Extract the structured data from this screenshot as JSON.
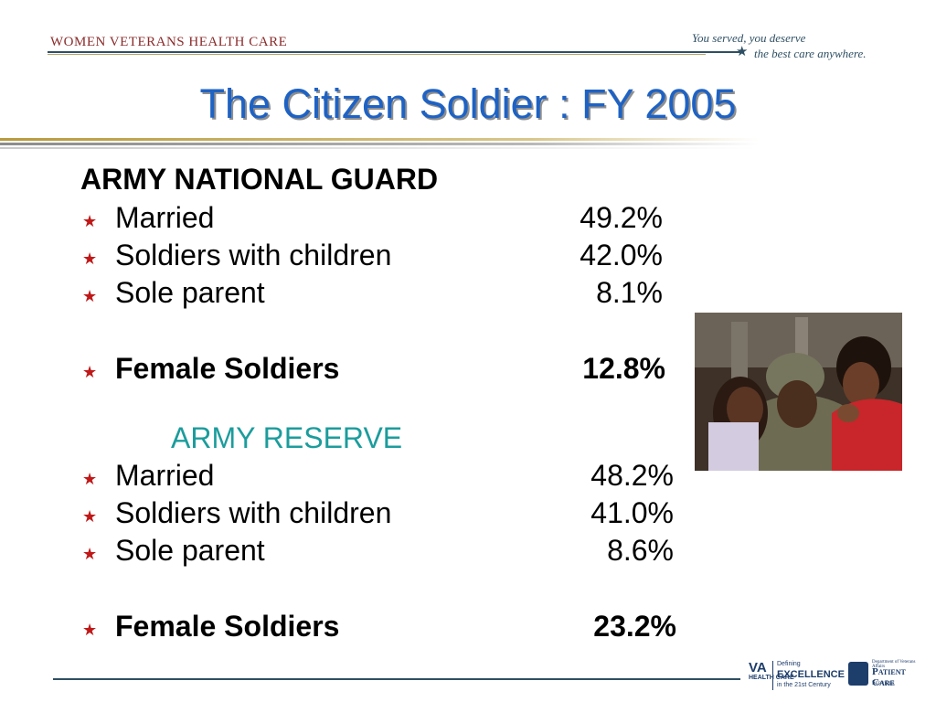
{
  "header": {
    "brand": "WOMEN VETERANS HEALTH CARE",
    "tagline_line1": "You served, you deserve",
    "tagline_line2": "the best care anywhere."
  },
  "title": "The Citizen Soldier :  FY 2005",
  "national_guard": {
    "heading": "ARMY NATIONAL GUARD",
    "rows": [
      {
        "label": "Married",
        "value": "49.2%"
      },
      {
        "label": "Soldiers with children",
        "value": "42.0%"
      },
      {
        "label": "Sole parent",
        "value": "8.1%"
      }
    ],
    "female": {
      "label": "Female Soldiers",
      "value": "12.8%"
    }
  },
  "reserve": {
    "heading": "ARMY RESERVE",
    "rows": [
      {
        "label": "Married",
        "value": "48.2%"
      },
      {
        "label": "Soldiers with children",
        "value": "41.0%"
      },
      {
        "label": "Sole parent",
        "value": "8.6%"
      }
    ],
    "female": {
      "label": "Female Soldiers",
      "value": "23.2%"
    }
  },
  "footer": {
    "va_mark": "VA",
    "va_health_care": "HEALTH CARE",
    "va_defining": "Defining",
    "va_excellence": "EXCELLENCE",
    "va_century": "in the 21st Century",
    "pcs_department": "Department of Veterans Affairs",
    "pcs_patient_care": "Patient Care",
    "pcs_services": "Services"
  },
  "colors": {
    "title": "#1e62c4",
    "reserve_heading": "#1c9c9c",
    "bullet": "#c01818",
    "brand": "#8a2b2b"
  },
  "icons": {
    "bullet": "star-icon"
  }
}
